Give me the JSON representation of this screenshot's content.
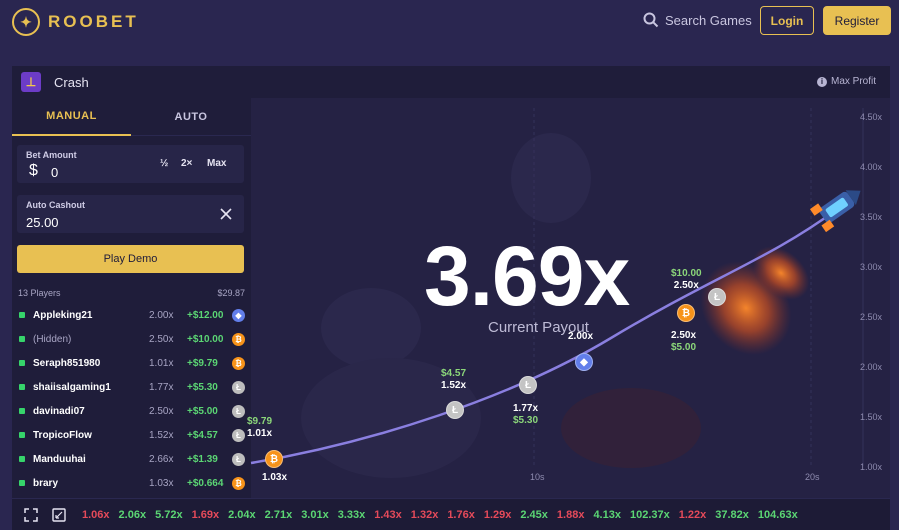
{
  "header": {
    "brand": "ROOBET",
    "search_label": "Search Games",
    "login_label": "Login",
    "register_label": "Register"
  },
  "game": {
    "title": "Crash",
    "max_profit_label": "Max Profit",
    "tabs": [
      "MANUAL",
      "AUTO"
    ],
    "bet_amount_label": "Bet Amount",
    "bet_currency": "$",
    "bet_amount_value": "0",
    "bet_buttons": [
      "½",
      "2×",
      "Max"
    ],
    "auto_cashout_label": "Auto Cashout",
    "auto_cashout_value": "25.00",
    "play_label": "Play Demo",
    "players_count": "13 Players",
    "players_total": "$29.87",
    "players": [
      {
        "name": "Appleking21",
        "mult": "2.00x",
        "win": "+$12.00",
        "coin": "eth"
      },
      {
        "name": "(Hidden)",
        "mult": "2.50x",
        "win": "+$10.00",
        "coin": "btc"
      },
      {
        "name": "Seraph851980",
        "mult": "1.01x",
        "win": "+$9.79",
        "coin": "btc"
      },
      {
        "name": "shaiisalgaming1",
        "mult": "1.77x",
        "win": "+$5.30",
        "coin": "ltc"
      },
      {
        "name": "davinadi07",
        "mult": "2.50x",
        "win": "+$5.00",
        "coin": "ltc"
      },
      {
        "name": "TropicoFlow",
        "mult": "1.52x",
        "win": "+$4.57",
        "coin": "ltc"
      },
      {
        "name": "Manduuhai",
        "mult": "2.66x",
        "win": "+$1.39",
        "coin": "ltc"
      },
      {
        "name": "brary",
        "mult": "1.03x",
        "win": "+$0.664",
        "coin": "btc"
      }
    ],
    "current_multiplier": "3.69x",
    "current_payout_label": "Current Payout",
    "y_axis": [
      "4.50x",
      "4.00x",
      "3.50x",
      "3.00x",
      "2.50x",
      "2.00x",
      "1.50x",
      "1.00x"
    ],
    "x_axis": [
      "10s",
      "20s"
    ],
    "markers": [
      {
        "amount": "$9.79",
        "mult": "1.01x"
      },
      {
        "amount": "$4.57",
        "mult": "1.52x"
      },
      {
        "amount": "$5.30",
        "mult": "1.77x"
      },
      {
        "amount": "",
        "mult": "2.00x"
      },
      {
        "amount": "$10.00",
        "mult": "2.50x"
      },
      {
        "amount": "$5.00",
        "mult": "2.50x"
      },
      {
        "amount": "",
        "mult": "1.03x"
      }
    ],
    "history": [
      {
        "v": "1.06x",
        "c": "red"
      },
      {
        "v": "2.06x",
        "c": "green"
      },
      {
        "v": "5.72x",
        "c": "green"
      },
      {
        "v": "1.69x",
        "c": "red"
      },
      {
        "v": "2.04x",
        "c": "green"
      },
      {
        "v": "2.71x",
        "c": "green"
      },
      {
        "v": "3.01x",
        "c": "green"
      },
      {
        "v": "3.33x",
        "c": "green"
      },
      {
        "v": "1.43x",
        "c": "red"
      },
      {
        "v": "1.32x",
        "c": "red"
      },
      {
        "v": "1.76x",
        "c": "red"
      },
      {
        "v": "1.29x",
        "c": "red"
      },
      {
        "v": "2.45x",
        "c": "green"
      },
      {
        "v": "1.88x",
        "c": "red"
      },
      {
        "v": "4.13x",
        "c": "green"
      },
      {
        "v": "102.37x",
        "c": "green"
      },
      {
        "v": "1.22x",
        "c": "red"
      },
      {
        "v": "37.82x",
        "c": "green"
      },
      {
        "v": "104.63x",
        "c": "green"
      }
    ]
  },
  "colors": {
    "accent": "#e8c052",
    "background": "#2a2650",
    "panel": "#1d1b36",
    "win_green": "#5bd674",
    "loss_red": "#e54a5a",
    "curve": "#8a7fe0"
  }
}
